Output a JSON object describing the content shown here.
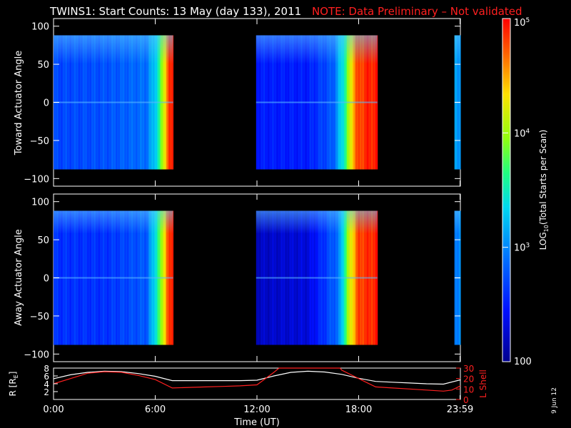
{
  "title": {
    "main": "TWINS1: Start Counts: 13 May (day 133), 2011",
    "note": "NOTE: Data Preliminary – Not validated",
    "note_color": "#ff2020"
  },
  "stamp": "9 Jun 12",
  "chart_data": [
    {
      "type": "heatmap",
      "name": "toward",
      "ylabel": "Toward Actuator Angle",
      "ylim": [
        -110,
        110
      ],
      "y_ticks": [
        "100",
        "50",
        "0",
        "−50",
        "−100"
      ],
      "y_tick_values": [
        100,
        50,
        0,
        -50,
        -100
      ],
      "data_y_range": [
        -88,
        88
      ],
      "x_unit": "hours UT",
      "data_segments": [
        {
          "start": 0.0,
          "end": 7.05
        },
        {
          "start": 11.95,
          "end": 19.1
        },
        {
          "start": 23.65,
          "end": 24.0
        }
      ],
      "profile_log10": [
        {
          "t": 0.0,
          "v": 2.7
        },
        {
          "t": 3.0,
          "v": 2.75
        },
        {
          "t": 5.5,
          "v": 2.9
        },
        {
          "t": 6.2,
          "v": 3.5
        },
        {
          "t": 6.5,
          "v": 4.2
        },
        {
          "t": 6.8,
          "v": 4.8
        },
        {
          "t": 7.0,
          "v": 4.9
        },
        {
          "t": 12.0,
          "v": 2.5
        },
        {
          "t": 15.0,
          "v": 2.5
        },
        {
          "t": 16.5,
          "v": 2.8
        },
        {
          "t": 17.2,
          "v": 3.6
        },
        {
          "t": 17.8,
          "v": 4.7
        },
        {
          "t": 18.5,
          "v": 4.9
        },
        {
          "t": 19.0,
          "v": 4.9
        },
        {
          "t": 23.7,
          "v": 3.2
        },
        {
          "t": 24.0,
          "v": 3.0
        }
      ]
    },
    {
      "type": "heatmap",
      "name": "away",
      "ylabel": "Away Actuator Angle",
      "ylim": [
        -110,
        110
      ],
      "y_ticks": [
        "100",
        "50",
        "0",
        "−50",
        "−100"
      ],
      "y_tick_values": [
        100,
        50,
        0,
        -50,
        -100
      ],
      "data_y_range": [
        -88,
        88
      ],
      "x_unit": "hours UT",
      "data_segments": [
        {
          "start": 0.0,
          "end": 7.05
        },
        {
          "start": 11.95,
          "end": 19.1
        },
        {
          "start": 23.65,
          "end": 24.0
        }
      ],
      "profile_log10": [
        {
          "t": 0.0,
          "v": 2.6
        },
        {
          "t": 3.0,
          "v": 2.6
        },
        {
          "t": 5.5,
          "v": 2.8
        },
        {
          "t": 6.3,
          "v": 3.8
        },
        {
          "t": 6.7,
          "v": 4.7
        },
        {
          "t": 7.0,
          "v": 4.9
        },
        {
          "t": 12.0,
          "v": 2.2
        },
        {
          "t": 15.0,
          "v": 2.3
        },
        {
          "t": 16.8,
          "v": 2.9
        },
        {
          "t": 17.5,
          "v": 4.2
        },
        {
          "t": 18.0,
          "v": 4.8
        },
        {
          "t": 19.0,
          "v": 4.9
        },
        {
          "t": 23.7,
          "v": 3.0
        },
        {
          "t": 24.0,
          "v": 3.0
        }
      ]
    },
    {
      "type": "line",
      "name": "orbit",
      "ylabel_left": "R [R",
      "ylabel_left_sub": "E",
      "ylabel_left_end": "]",
      "ylabel_right": "L Shell",
      "xlabel": "Time (UT)",
      "xlim": [
        0,
        24
      ],
      "x_ticks": [
        "0:00",
        "6:00",
        "12:00",
        "18:00",
        "23:59"
      ],
      "x_tick_values": [
        0,
        6,
        12,
        18,
        23.98
      ],
      "ylim_left": [
        0,
        8
      ],
      "y_ticks_left": [
        "8",
        "6",
        "4",
        "2"
      ],
      "y_tick_values_left": [
        8,
        6,
        4,
        2
      ],
      "ylim_right": [
        0,
        30
      ],
      "y_ticks_right": [
        "30",
        "20",
        "10",
        "0"
      ],
      "y_tick_values_right": [
        30,
        20,
        10,
        0
      ],
      "right_axis_color": "#ff2020",
      "series": [
        {
          "color": "#ffffff",
          "x": [
            0,
            1,
            2,
            3,
            4,
            5,
            6,
            7,
            8,
            9,
            10,
            11,
            12,
            13,
            14,
            15,
            16,
            17,
            18,
            19,
            20,
            21,
            22,
            23,
            24
          ],
          "y": [
            5.3,
            6.3,
            6.9,
            7.2,
            7.1,
            6.6,
            5.9,
            4.8,
            4.8,
            4.8,
            4.8,
            4.8,
            4.9,
            6.0,
            6.9,
            7.2,
            7.0,
            6.4,
            5.4,
            4.6,
            4.4,
            4.2,
            4.0,
            3.9,
            5.0
          ]
        },
        {
          "color": "#ff2020",
          "axis": "right",
          "x": [
            0,
            1,
            2,
            3,
            4,
            5,
            6,
            7,
            8,
            9,
            10,
            11,
            12,
            13,
            13.3,
            16.9,
            17,
            18,
            19,
            20,
            21,
            22,
            23,
            23.5,
            24
          ],
          "y": [
            15,
            20,
            25,
            26.5,
            26,
            23,
            19,
            11,
            11.5,
            12,
            12.5,
            13,
            14,
            26,
            30,
            30,
            28,
            20,
            12,
            11,
            10,
            9,
            8,
            9,
            13
          ]
        }
      ]
    }
  ],
  "colorbar": {
    "label_log": "LOG",
    "label_sub": "10",
    "label_rest": "(Total Starts per Scan)",
    "tick_labels": [
      {
        "base": "10",
        "exp": "5",
        "value": 5
      },
      {
        "base": "10",
        "exp": "4",
        "value": 4
      },
      {
        "base": "10",
        "exp": "3",
        "value": 3
      },
      {
        "base": "100",
        "exp": "",
        "value": 2
      }
    ],
    "range_log10": [
      2,
      5
    ]
  }
}
